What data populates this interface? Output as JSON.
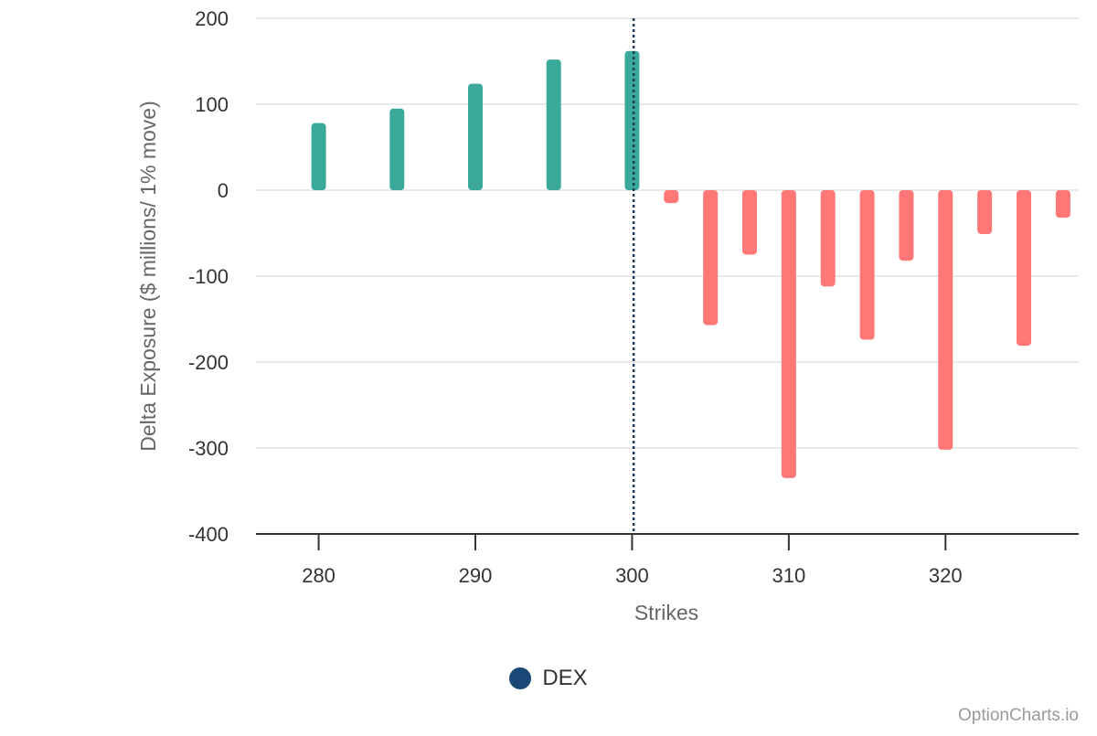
{
  "chart_data": {
    "type": "bar",
    "xlabel": "Strikes",
    "ylabel": "Delta Exposure ($ millions/ 1% move)",
    "ylim": [
      -400,
      200
    ],
    "y_ticks": [
      200,
      100,
      0,
      -100,
      -200,
      -300,
      -400
    ],
    "x_ticks": [
      280,
      290,
      300,
      310,
      320
    ],
    "xlim": [
      276,
      328.5
    ],
    "grid": true,
    "spot_line": 300.1,
    "positive_color": "#3aa99a",
    "negative_color": "#ff7777",
    "spot_line_color": "#1f3a5a",
    "series": [
      {
        "name": "DEX",
        "color": "#1b4776",
        "points": [
          {
            "strike": 280,
            "value": 78
          },
          {
            "strike": 285,
            "value": 95
          },
          {
            "strike": 290,
            "value": 124
          },
          {
            "strike": 295,
            "value": 152
          },
          {
            "strike": 300,
            "value": 162
          },
          {
            "strike": 302.5,
            "value": -15
          },
          {
            "strike": 305,
            "value": -157
          },
          {
            "strike": 307.5,
            "value": -75
          },
          {
            "strike": 310,
            "value": -335
          },
          {
            "strike": 312.5,
            "value": -112
          },
          {
            "strike": 315,
            "value": -174
          },
          {
            "strike": 317.5,
            "value": -82
          },
          {
            "strike": 320,
            "value": -302
          },
          {
            "strike": 322.5,
            "value": -51
          },
          {
            "strike": 325,
            "value": -181
          },
          {
            "strike": 327.5,
            "value": -32
          }
        ]
      }
    ]
  },
  "legend": {
    "label": "DEX",
    "color": "#1b4776"
  },
  "credit": "OptionCharts.io"
}
